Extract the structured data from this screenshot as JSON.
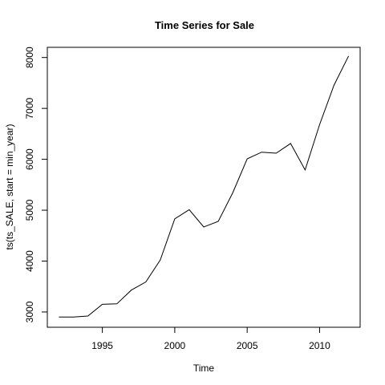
{
  "chart_data": {
    "type": "line",
    "title": "Time Series for Sale",
    "xlabel": "Time",
    "ylabel": "ts(ts_SALE, start = min_year)",
    "x": [
      1992,
      1993,
      1994,
      1995,
      1996,
      1997,
      1998,
      1999,
      2000,
      2001,
      2002,
      2003,
      2004,
      2005,
      2006,
      2007,
      2008,
      2009,
      2010,
      2011,
      2012
    ],
    "y": [
      2900,
      2900,
      2920,
      3150,
      3160,
      3430,
      3590,
      4020,
      4830,
      5010,
      4670,
      4780,
      5340,
      6010,
      6140,
      6120,
      6310,
      5790,
      6680,
      7460,
      8030
    ],
    "xlim": [
      1991.2,
      2012.8
    ],
    "ylim": [
      2700,
      8200
    ],
    "x_ticks": [
      1995,
      2000,
      2005,
      2010
    ],
    "y_ticks": [
      3000,
      4000,
      5000,
      6000,
      7000,
      8000
    ],
    "x_tick_labels": [
      "1995",
      "2000",
      "2005",
      "2010"
    ],
    "y_tick_labels": [
      "3000",
      "4000",
      "5000",
      "6000",
      "7000",
      "8000"
    ],
    "grid": false,
    "line_color": "#000000"
  }
}
